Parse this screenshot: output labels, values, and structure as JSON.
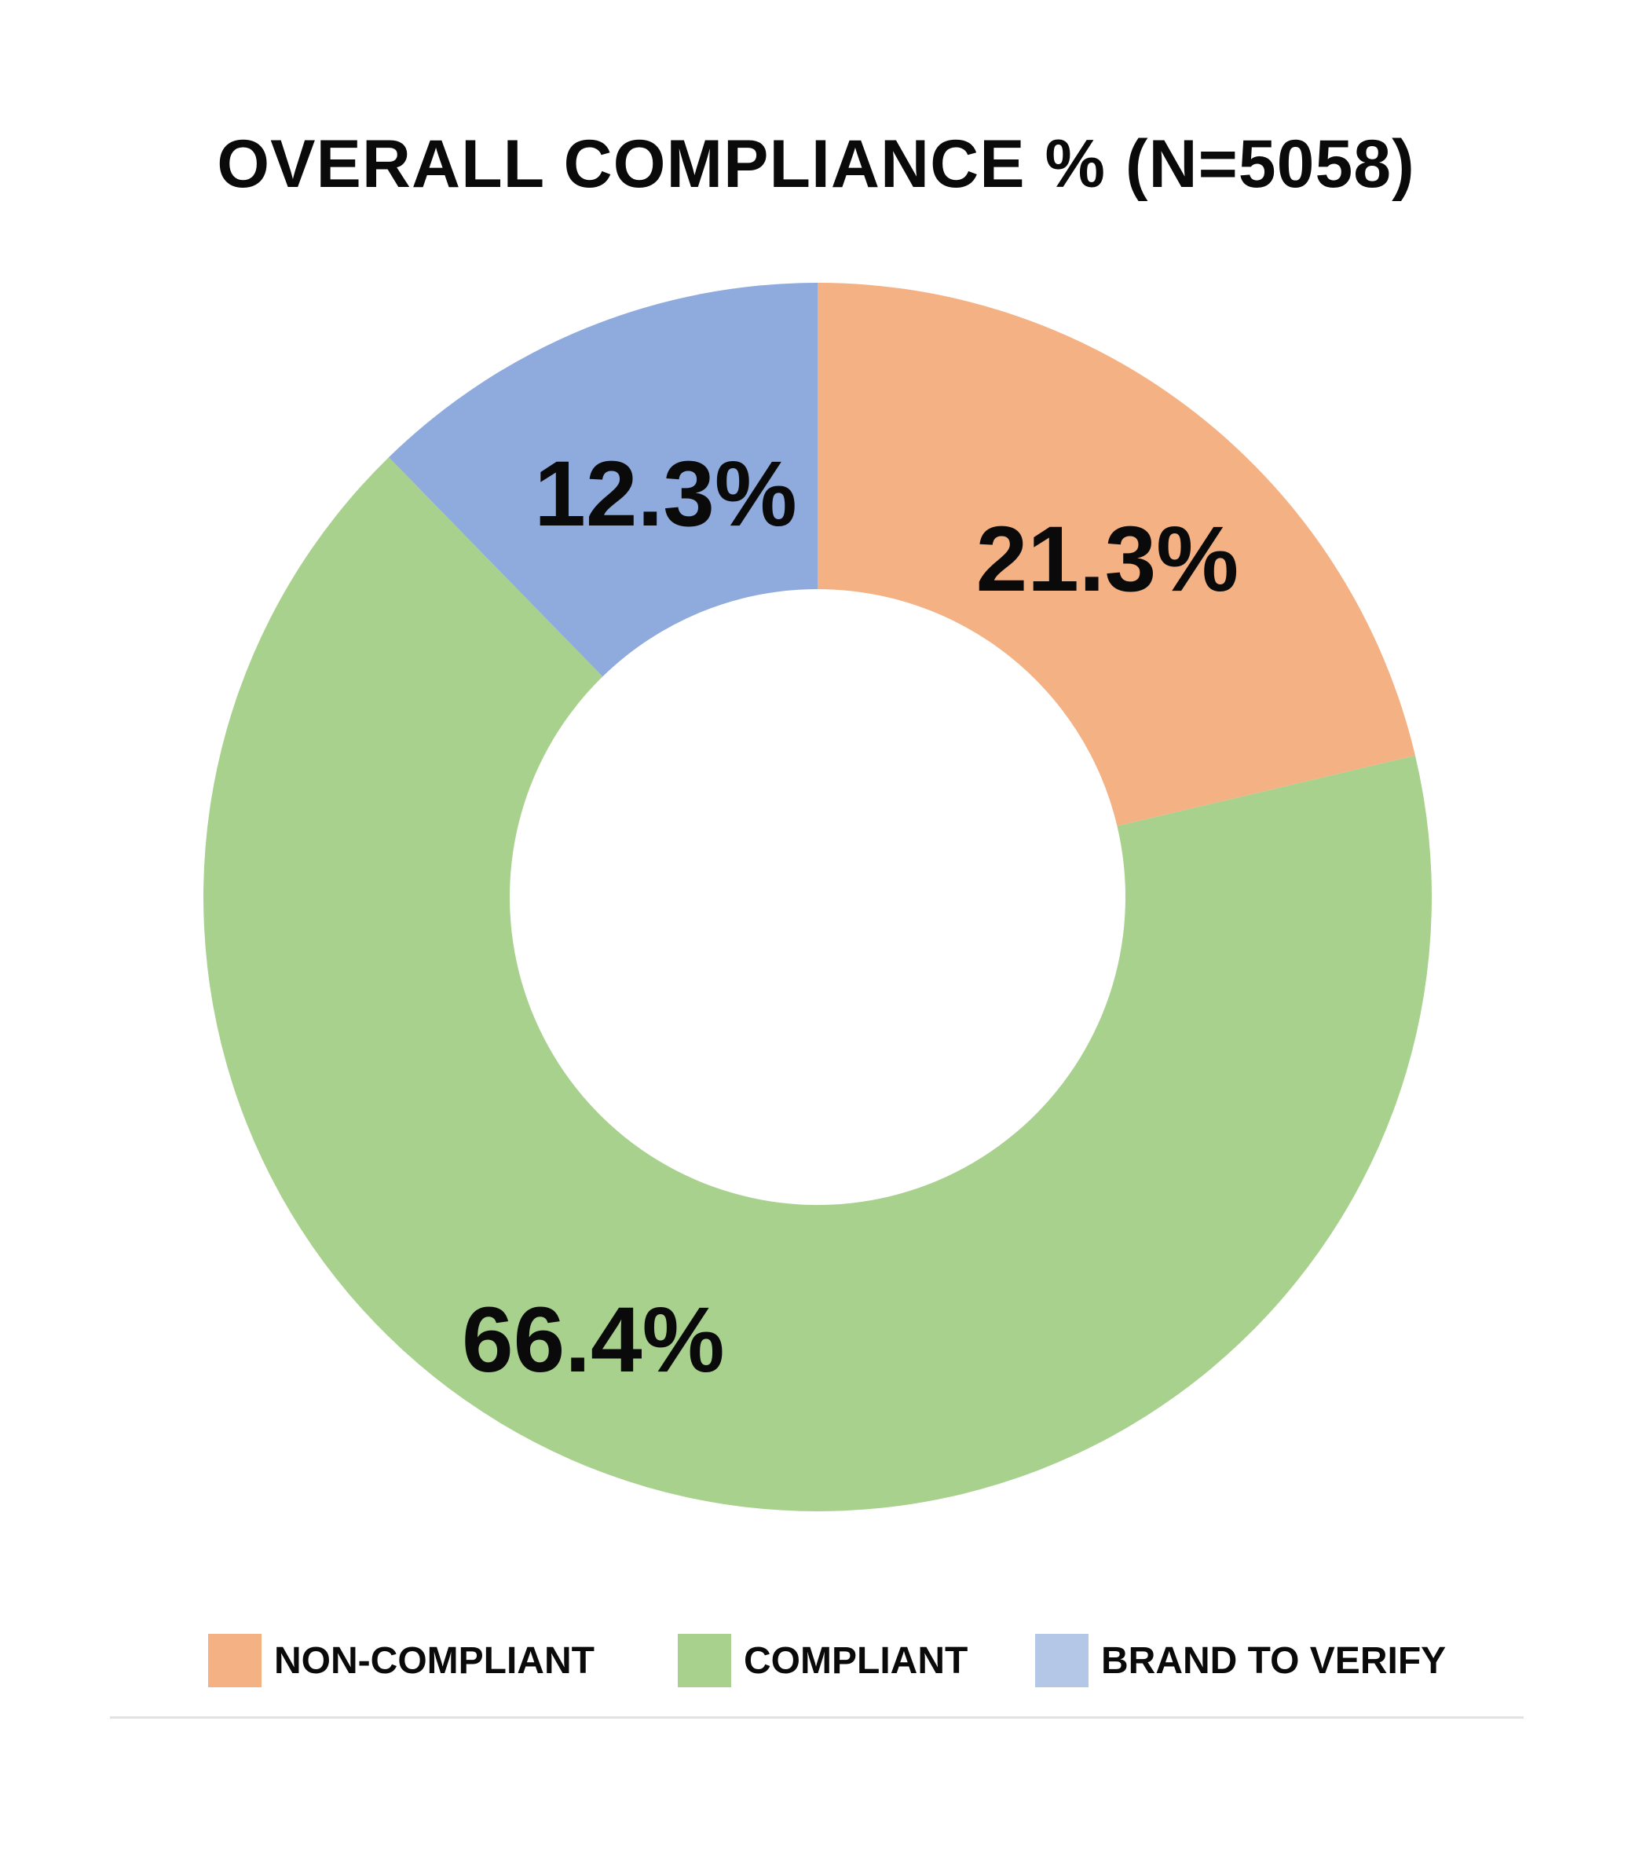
{
  "chart_data": {
    "type": "pie",
    "variant": "donut",
    "title": "OVERALL COMPLIANCE % (N=5058)",
    "slices": [
      {
        "name": "NON-COMPLIANT",
        "value": 21.3,
        "label": "21.3%",
        "color": "#f4b183"
      },
      {
        "name": "COMPLIANT",
        "value": 66.4,
        "label": "66.4%",
        "color": "#a9d18e"
      },
      {
        "name": "BRAND TO VERIFY",
        "value": 12.3,
        "label": "12.3%",
        "color": "#8faadc"
      }
    ],
    "legend": {
      "placement": "bottom",
      "items": [
        {
          "label": "NON-COMPLIANT",
          "color": "#f4b183"
        },
        {
          "label": "COMPLIANT",
          "color": "#a9d18e"
        },
        {
          "label": "BRAND TO VERIFY",
          "color": "#b4c7e7"
        }
      ]
    }
  }
}
